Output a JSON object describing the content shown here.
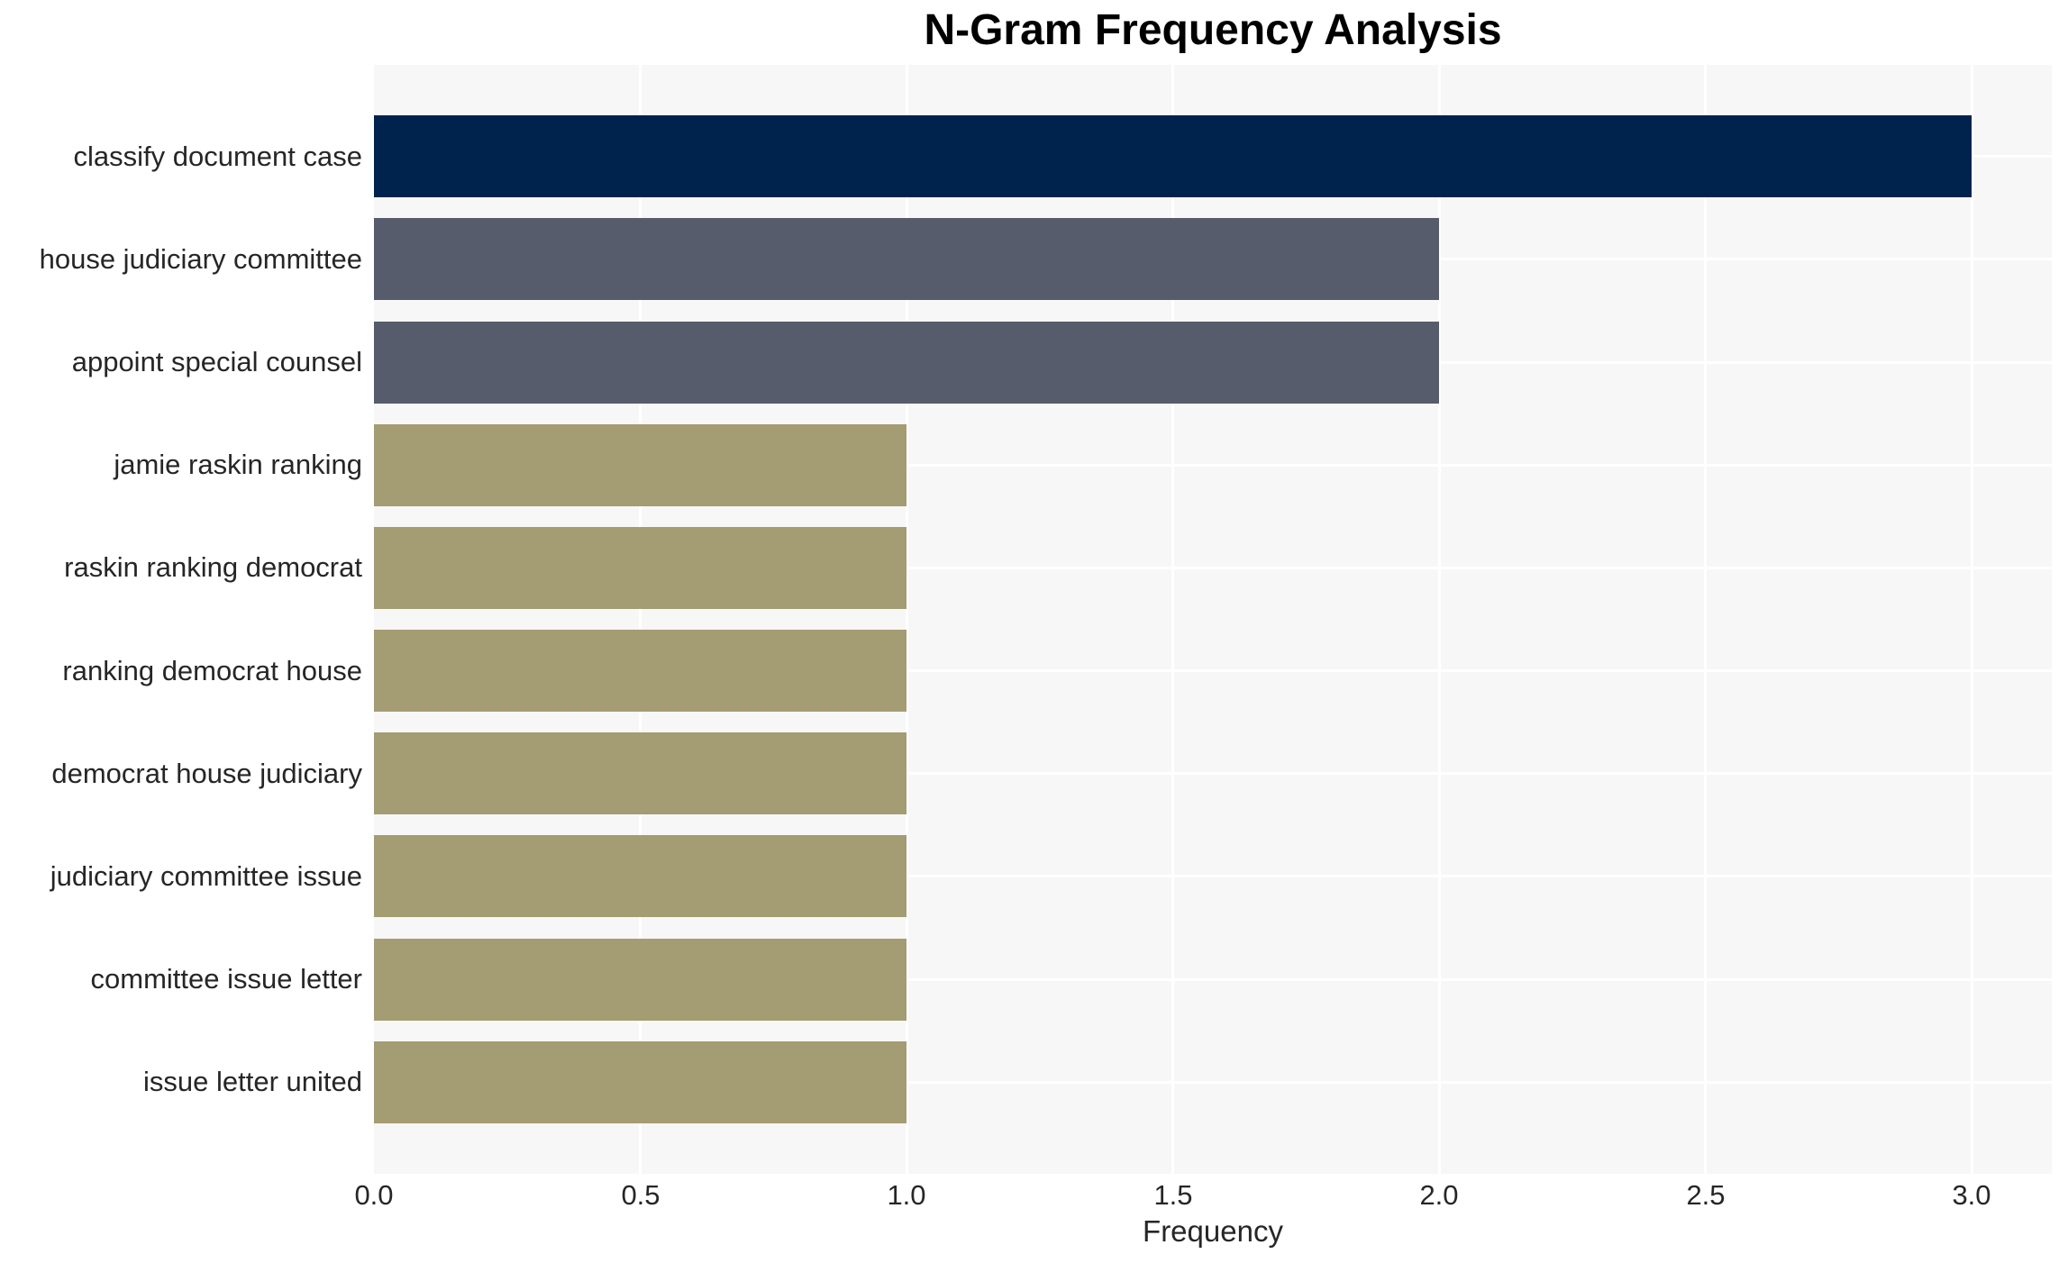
{
  "chart_data": {
    "type": "bar",
    "orientation": "horizontal",
    "title": "N-Gram Frequency Analysis",
    "xlabel": "Frequency",
    "ylabel": "",
    "categories": [
      "classify document case",
      "house judiciary committee",
      "appoint special counsel",
      "jamie raskin ranking",
      "raskin ranking democrat",
      "ranking democrat house",
      "democrat house judiciary",
      "judiciary committee issue",
      "committee issue letter",
      "issue letter united"
    ],
    "values": [
      3,
      2,
      2,
      1,
      1,
      1,
      1,
      1,
      1,
      1
    ],
    "bar_colors": [
      "#00234E",
      "#565C6B",
      "#565C6B",
      "#A49C72",
      "#A49C72",
      "#A49C72",
      "#A49C72",
      "#A49C72",
      "#A49C72",
      "#A49C72"
    ],
    "xlim": [
      0,
      3.15
    ],
    "xticks": [
      0.0,
      0.5,
      1.0,
      1.5,
      2.0,
      2.5,
      3.0
    ],
    "xtick_labels": [
      "0.0",
      "0.5",
      "1.0",
      "1.5",
      "2.0",
      "2.5",
      "3.0"
    ],
    "grid": "white gridlines (vertical at x ticks, horizontal at category centers) on light panel",
    "legend": "none",
    "colors": {
      "plot_bg": "#F7F7F7",
      "grid": "#FFFFFF",
      "tick_text": "#262626",
      "title_text": "#000000"
    }
  }
}
